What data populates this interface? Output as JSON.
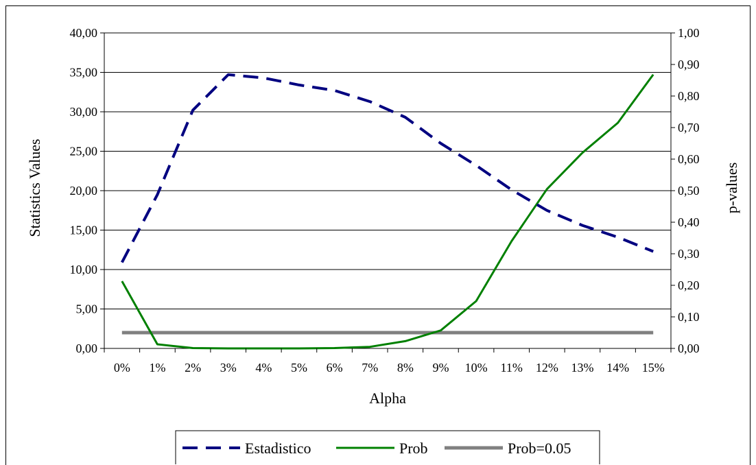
{
  "chart_data": {
    "type": "line",
    "xlabel": "Alpha",
    "ylabel_left": "Statistics Values",
    "ylabel_right": "p-values",
    "categories": [
      "0%",
      "1%",
      "2%",
      "3%",
      "4%",
      "5%",
      "6%",
      "7%",
      "8%",
      "9%",
      "10%",
      "11%",
      "12%",
      "13%",
      "14%",
      "15%"
    ],
    "y_left_ticks": [
      "0,00",
      "5,00",
      "10,00",
      "15,00",
      "20,00",
      "25,00",
      "30,00",
      "35,00",
      "40,00"
    ],
    "y_right_ticks": [
      "0,00",
      "0,10",
      "0,20",
      "0,30",
      "0,40",
      "0,50",
      "0,60",
      "0,70",
      "0,80",
      "0,90",
      "1,00"
    ],
    "ylim_left": [
      0,
      40
    ],
    "ylim_right": [
      0,
      1
    ],
    "grid": true,
    "legend_position": "bottom",
    "series": [
      {
        "name": "Estadistico",
        "axis": "left",
        "style": "dashed",
        "color": "#000080",
        "values": [
          10.9,
          19.5,
          30.2,
          34.7,
          34.3,
          33.4,
          32.7,
          31.3,
          29.3,
          26.0,
          23.2,
          20.1,
          17.5,
          15.6,
          14.1,
          12.3
        ]
      },
      {
        "name": "Prob",
        "axis": "right",
        "style": "solid",
        "color": "#008000",
        "values": [
          0.213,
          0.013,
          0.001,
          0.0,
          0.0,
          0.0,
          0.001,
          0.005,
          0.023,
          0.057,
          0.15,
          0.34,
          0.505,
          0.62,
          0.715,
          0.868
        ]
      },
      {
        "name": "Prob=0.05",
        "axis": "right",
        "style": "solid",
        "color": "#808080",
        "values": [
          0.05,
          0.05,
          0.05,
          0.05,
          0.05,
          0.05,
          0.05,
          0.05,
          0.05,
          0.05,
          0.05,
          0.05,
          0.05,
          0.05,
          0.05,
          0.05
        ]
      }
    ]
  }
}
